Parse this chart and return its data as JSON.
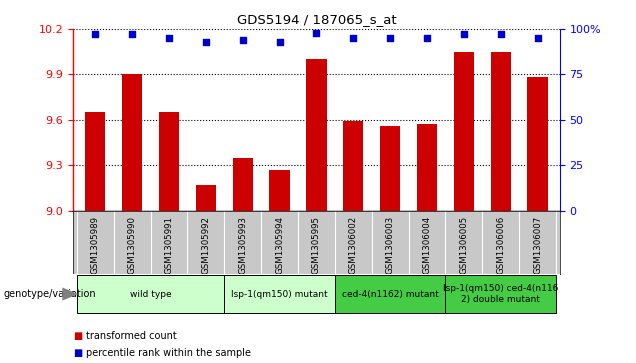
{
  "title": "GDS5194 / 187065_s_at",
  "categories": [
    "GSM1305989",
    "GSM1305990",
    "GSM1305991",
    "GSM1305992",
    "GSM1305993",
    "GSM1305994",
    "GSM1305995",
    "GSM1306002",
    "GSM1306003",
    "GSM1306004",
    "GSM1306005",
    "GSM1306006",
    "GSM1306007"
  ],
  "bar_values": [
    9.65,
    9.9,
    9.65,
    9.17,
    9.35,
    9.27,
    10.0,
    9.59,
    9.56,
    9.57,
    10.05,
    10.05,
    9.88
  ],
  "percentile_values": [
    97,
    97,
    95,
    93,
    94,
    93,
    98,
    95,
    95,
    95,
    97,
    97,
    95
  ],
  "ylim_left": [
    9.0,
    10.2
  ],
  "ylim_right": [
    0,
    100
  ],
  "yticks_left": [
    9.0,
    9.3,
    9.6,
    9.9,
    10.2
  ],
  "yticks_right": [
    0,
    25,
    50,
    75,
    100
  ],
  "bar_color": "#cc0000",
  "dot_color": "#0000cc",
  "genotype_groups": [
    {
      "label": "wild type",
      "start": 0,
      "end": 3,
      "color": "#ccffcc"
    },
    {
      "label": "lsp-1(qm150) mutant",
      "start": 4,
      "end": 6,
      "color": "#ccffcc"
    },
    {
      "label": "ced-4(n1162) mutant",
      "start": 7,
      "end": 9,
      "color": "#44cc44"
    },
    {
      "label": "lsp-1(qm150) ced-4(n116\n2) double mutant",
      "start": 10,
      "end": 12,
      "color": "#44cc44"
    }
  ],
  "xtick_bg_color": "#c8c8c8",
  "legend_red_label": "transformed count",
  "legend_blue_label": "percentile rank within the sample",
  "genotype_label": "genotype/variation"
}
